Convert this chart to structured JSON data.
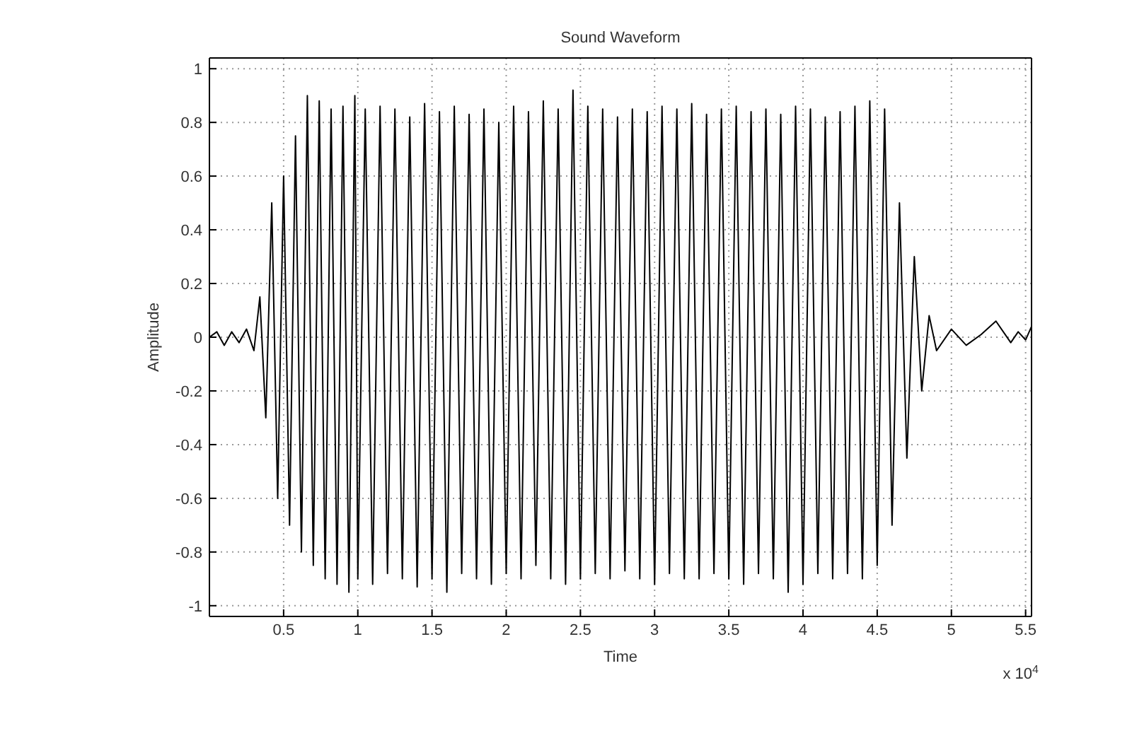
{
  "chart_data": {
    "type": "line",
    "title": "Sound Waveform",
    "xlabel": "Time",
    "ylabel": "Amplitude",
    "annotations": [
      "x 10$^{4}$"
    ],
    "x": [
      0,
      0.05,
      0.1,
      0.15,
      0.2,
      0.25,
      0.3,
      0.34,
      0.38,
      0.42,
      0.46,
      0.5,
      0.54,
      0.58,
      0.62,
      0.66,
      0.7,
      0.74,
      0.78,
      0.82,
      0.86,
      0.9,
      0.94,
      0.98,
      1.0,
      1.05,
      1.1,
      1.15,
      1.2,
      1.25,
      1.3,
      1.35,
      1.4,
      1.45,
      1.5,
      1.55,
      1.6,
      1.65,
      1.7,
      1.75,
      1.8,
      1.85,
      1.9,
      1.95,
      2.0,
      2.05,
      2.1,
      2.15,
      2.2,
      2.25,
      2.3,
      2.35,
      2.4,
      2.45,
      2.5,
      2.55,
      2.6,
      2.65,
      2.7,
      2.75,
      2.8,
      2.85,
      2.9,
      2.95,
      3.0,
      3.05,
      3.1,
      3.15,
      3.2,
      3.25,
      3.3,
      3.35,
      3.4,
      3.45,
      3.5,
      3.55,
      3.6,
      3.65,
      3.7,
      3.75,
      3.8,
      3.85,
      3.9,
      3.95,
      4.0,
      4.05,
      4.1,
      4.15,
      4.2,
      4.25,
      4.3,
      4.35,
      4.4,
      4.45,
      4.5,
      4.55,
      4.6,
      4.65,
      4.7,
      4.75,
      4.8,
      4.85,
      4.9,
      5.0,
      5.1,
      5.2,
      5.3,
      5.4,
      5.45,
      5.5,
      5.54
    ],
    "values": [
      0,
      0.02,
      -0.03,
      0.02,
      -0.02,
      0.03,
      -0.05,
      0.15,
      -0.3,
      0.5,
      -0.6,
      0.6,
      -0.7,
      0.75,
      -0.8,
      0.9,
      -0.85,
      0.88,
      -0.9,
      0.85,
      -0.92,
      0.86,
      -0.95,
      0.9,
      -0.9,
      0.85,
      -0.92,
      0.86,
      -0.88,
      0.85,
      -0.9,
      0.82,
      -0.93,
      0.87,
      -0.9,
      0.84,
      -0.95,
      0.86,
      -0.88,
      0.83,
      -0.9,
      0.85,
      -0.92,
      0.8,
      -0.88,
      0.86,
      -0.9,
      0.84,
      -0.85,
      0.88,
      -0.9,
      0.85,
      -0.92,
      0.92,
      -0.9,
      0.86,
      -0.88,
      0.85,
      -0.9,
      0.82,
      -0.87,
      0.85,
      -0.9,
      0.84,
      -0.92,
      0.86,
      -0.88,
      0.85,
      -0.9,
      0.87,
      -0.9,
      0.83,
      -0.88,
      0.85,
      -0.9,
      0.86,
      -0.92,
      0.84,
      -0.88,
      0.85,
      -0.9,
      0.83,
      -0.95,
      0.86,
      -0.92,
      0.85,
      -0.88,
      0.82,
      -0.9,
      0.84,
      -0.88,
      0.86,
      -0.9,
      0.88,
      -0.85,
      0.85,
      -0.7,
      0.5,
      -0.45,
      0.3,
      -0.2,
      0.08,
      -0.05,
      0.03,
      -0.03,
      0.01,
      0.06,
      -0.02,
      0.02,
      -0.01,
      0.04
    ],
    "color": "#000000",
    "xlim": [
      0,
      5.54
    ],
    "ylim": [
      -1.04,
      1.04
    ],
    "xticks": [
      0.5,
      1,
      1.5,
      2,
      2.5,
      3,
      3.5,
      4,
      4.5,
      5,
      5.5
    ],
    "yticks": [
      -1,
      -0.8,
      -0.6,
      -0.4,
      -0.2,
      0,
      0.2,
      0.4,
      0.6,
      0.8,
      1
    ],
    "grid": true,
    "line_style": "solid",
    "marker": "none"
  }
}
